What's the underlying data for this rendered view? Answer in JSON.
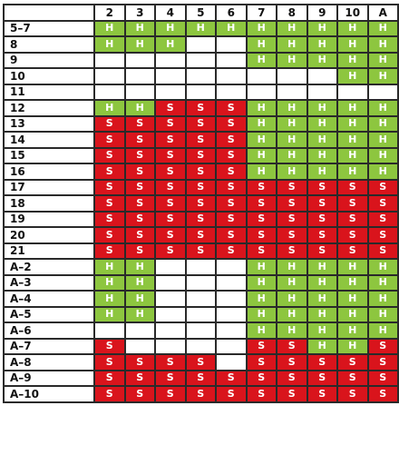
{
  "columns": [
    "2",
    "3",
    "4",
    "5",
    "6",
    "7",
    "8",
    "9",
    "10",
    "A"
  ],
  "rows": [
    {
      "label": "5–7",
      "cells": [
        "H",
        "H",
        "H",
        "H",
        "H",
        "H",
        "H",
        "H",
        "H",
        "H"
      ]
    },
    {
      "label": "8",
      "cells": [
        "H",
        "H",
        "H",
        "",
        "",
        "H",
        "H",
        "H",
        "H",
        "H"
      ]
    },
    {
      "label": "9",
      "cells": [
        "",
        "",
        "",
        "",
        "",
        "H",
        "H",
        "H",
        "H",
        "H"
      ]
    },
    {
      "label": "10",
      "cells": [
        "",
        "",
        "",
        "",
        "",
        "",
        "",
        "",
        "H",
        "H"
      ]
    },
    {
      "label": "11",
      "cells": [
        "",
        "",
        "",
        "",
        "",
        "",
        "",
        "",
        "",
        ""
      ]
    },
    {
      "label": "12",
      "cells": [
        "H",
        "H",
        "S",
        "S",
        "S",
        "H",
        "H",
        "H",
        "H",
        "H"
      ]
    },
    {
      "label": "13",
      "cells": [
        "S",
        "S",
        "S",
        "S",
        "S",
        "H",
        "H",
        "H",
        "H",
        "H"
      ]
    },
    {
      "label": "14",
      "cells": [
        "S",
        "S",
        "S",
        "S",
        "S",
        "H",
        "H",
        "H",
        "H",
        "H"
      ]
    },
    {
      "label": "15",
      "cells": [
        "S",
        "S",
        "S",
        "S",
        "S",
        "H",
        "H",
        "H",
        "H",
        "H"
      ]
    },
    {
      "label": "16",
      "cells": [
        "S",
        "S",
        "S",
        "S",
        "S",
        "H",
        "H",
        "H",
        "H",
        "H"
      ]
    },
    {
      "label": "17",
      "cells": [
        "S",
        "S",
        "S",
        "S",
        "S",
        "S",
        "S",
        "S",
        "S",
        "S"
      ]
    },
    {
      "label": "18",
      "cells": [
        "S",
        "S",
        "S",
        "S",
        "S",
        "S",
        "S",
        "S",
        "S",
        "S"
      ]
    },
    {
      "label": "19",
      "cells": [
        "S",
        "S",
        "S",
        "S",
        "S",
        "S",
        "S",
        "S",
        "S",
        "S"
      ]
    },
    {
      "label": "20",
      "cells": [
        "S",
        "S",
        "S",
        "S",
        "S",
        "S",
        "S",
        "S",
        "S",
        "S"
      ]
    },
    {
      "label": "21",
      "cells": [
        "S",
        "S",
        "S",
        "S",
        "S",
        "S",
        "S",
        "S",
        "S",
        "S"
      ]
    },
    {
      "label": "A–2",
      "cells": [
        "H",
        "H",
        "",
        "",
        "",
        "H",
        "H",
        "H",
        "H",
        "H"
      ]
    },
    {
      "label": "A–3",
      "cells": [
        "H",
        "H",
        "",
        "",
        "",
        "H",
        "H",
        "H",
        "H",
        "H"
      ]
    },
    {
      "label": "A–4",
      "cells": [
        "H",
        "H",
        "",
        "",
        "",
        "H",
        "H",
        "H",
        "H",
        "H"
      ]
    },
    {
      "label": "A–5",
      "cells": [
        "H",
        "H",
        "",
        "",
        "",
        "H",
        "H",
        "H",
        "H",
        "H"
      ]
    },
    {
      "label": "A–6",
      "cells": [
        "",
        "",
        "",
        "",
        "",
        "H",
        "H",
        "H",
        "H",
        "H"
      ]
    },
    {
      "label": "A–7",
      "cells": [
        "S",
        "",
        "",
        "",
        "",
        "S",
        "S",
        "H",
        "H",
        "S"
      ]
    },
    {
      "label": "A–8",
      "cells": [
        "S",
        "S",
        "S",
        "S",
        "",
        "S",
        "S",
        "S",
        "S",
        "S"
      ]
    },
    {
      "label": "A–9",
      "cells": [
        "S",
        "S",
        "S",
        "S",
        "S",
        "S",
        "S",
        "S",
        "S",
        "S"
      ]
    },
    {
      "label": "A–10",
      "cells": [
        "S",
        "S",
        "S",
        "S",
        "S",
        "S",
        "S",
        "S",
        "S",
        "S"
      ]
    }
  ],
  "colors": {
    "hit": "#8dc63f",
    "stand": "#d9141c",
    "empty": "#ffffff",
    "grid": "#2a2a2a"
  }
}
